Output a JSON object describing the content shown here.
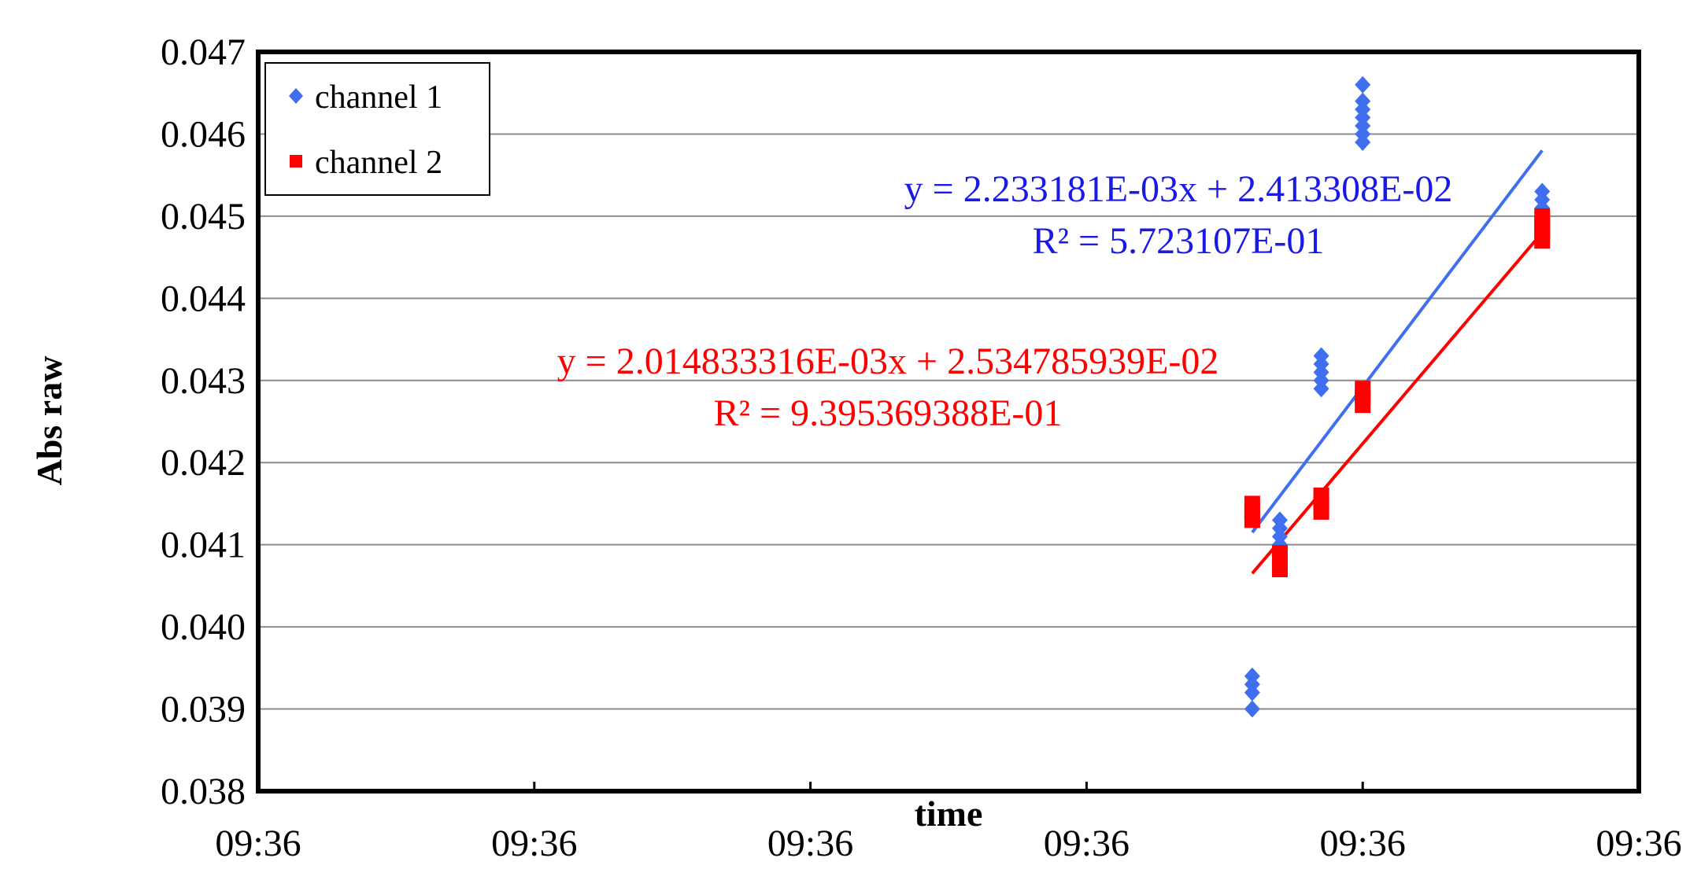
{
  "chart_data": {
    "type": "scatter",
    "xlabel": "time",
    "ylabel": "Abs raw",
    "ylim": [
      0.038,
      0.047
    ],
    "y_ticks": [
      "0.038",
      "0.039",
      "0.040",
      "0.041",
      "0.042",
      "0.043",
      "0.044",
      "0.045",
      "0.046",
      "0.047"
    ],
    "x_ticks": [
      "09:36",
      "09:36",
      "09:36",
      "09:36",
      "09:36",
      "09:36"
    ],
    "grid": true,
    "legend_position": "top-left",
    "series": [
      {
        "name": "channel 1",
        "color": "#3f6fef",
        "marker": "diamond",
        "points": [
          {
            "x": 0.72,
            "y": 0.039
          },
          {
            "x": 0.72,
            "y": 0.0392
          },
          {
            "x": 0.72,
            "y": 0.0393
          },
          {
            "x": 0.72,
            "y": 0.0394
          },
          {
            "x": 0.74,
            "y": 0.041
          },
          {
            "x": 0.74,
            "y": 0.0411
          },
          {
            "x": 0.74,
            "y": 0.0412
          },
          {
            "x": 0.74,
            "y": 0.0413
          },
          {
            "x": 0.77,
            "y": 0.0429
          },
          {
            "x": 0.77,
            "y": 0.043
          },
          {
            "x": 0.77,
            "y": 0.0431
          },
          {
            "x": 0.77,
            "y": 0.0432
          },
          {
            "x": 0.77,
            "y": 0.0433
          },
          {
            "x": 0.8,
            "y": 0.0459
          },
          {
            "x": 0.8,
            "y": 0.046
          },
          {
            "x": 0.8,
            "y": 0.0461
          },
          {
            "x": 0.8,
            "y": 0.0462
          },
          {
            "x": 0.8,
            "y": 0.0463
          },
          {
            "x": 0.8,
            "y": 0.0464
          },
          {
            "x": 0.8,
            "y": 0.0466
          },
          {
            "x": 0.93,
            "y": 0.0451
          },
          {
            "x": 0.93,
            "y": 0.0452
          },
          {
            "x": 0.93,
            "y": 0.0453
          }
        ]
      },
      {
        "name": "channel 2",
        "color": "#ff0000",
        "marker": "square",
        "points": [
          {
            "x": 0.72,
            "y": 0.0413
          },
          {
            "x": 0.72,
            "y": 0.0414
          },
          {
            "x": 0.72,
            "y": 0.0415
          },
          {
            "x": 0.74,
            "y": 0.0407
          },
          {
            "x": 0.74,
            "y": 0.0408
          },
          {
            "x": 0.74,
            "y": 0.0409
          },
          {
            "x": 0.77,
            "y": 0.0414
          },
          {
            "x": 0.77,
            "y": 0.0415
          },
          {
            "x": 0.77,
            "y": 0.0416
          },
          {
            "x": 0.8,
            "y": 0.0427
          },
          {
            "x": 0.8,
            "y": 0.0428
          },
          {
            "x": 0.8,
            "y": 0.0429
          },
          {
            "x": 0.93,
            "y": 0.0447
          },
          {
            "x": 0.93,
            "y": 0.0448
          },
          {
            "x": 0.93,
            "y": 0.0449
          },
          {
            "x": 0.93,
            "y": 0.045
          }
        ]
      }
    ],
    "trendlines": [
      {
        "series": "channel 1",
        "color": "#3f6fef",
        "x": [
          0.72,
          0.93
        ],
        "y": [
          0.04115,
          0.0458
        ],
        "equation": "y = 2.233181E-03x + 2.413308E-02",
        "r2": "R² = 5.723107E-01"
      },
      {
        "series": "channel 2",
        "color": "#ff0000",
        "x": [
          0.72,
          0.93
        ],
        "y": [
          0.04065,
          0.0448
        ],
        "equation": "y = 2.014833316E-03x + 2.534785939E-02",
        "r2": "R² = 9.395369388E-01"
      }
    ]
  }
}
